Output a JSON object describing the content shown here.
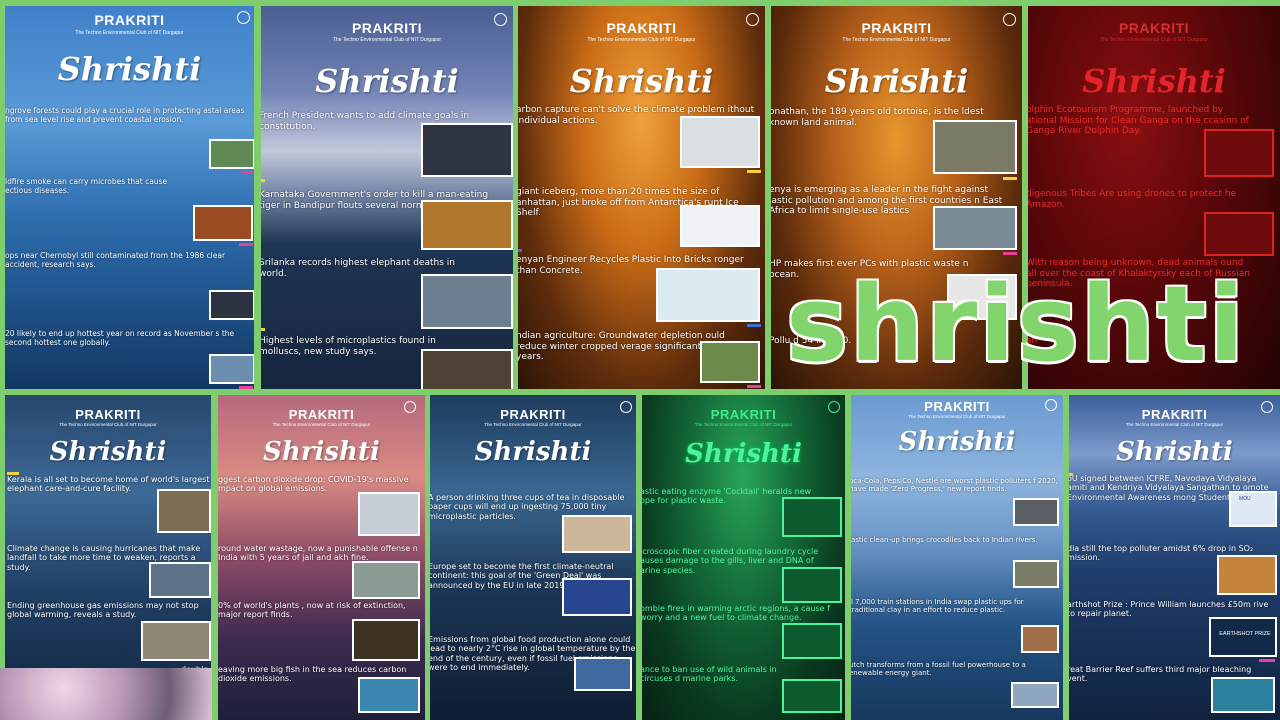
{
  "brand": "PRAKRITI",
  "brand_sub": "The Techno Environmental Club of NIT Durgapur",
  "newsletter_title": "Shrishti",
  "overlay_text": "shrishti",
  "panels": [
    {
      "items": [
        "ngrove forests could play a crucial role in protecting astal areas from sea level rise and prevent coastal erosion.",
        "ldfire smoke can carry microbes that cause ectious  diseases.",
        "ops near Chernobyl still contaminated from the 1986 clear accident, research says.",
        "20 likely to end up hottest year on record as November s the second hottest one globally."
      ]
    },
    {
      "items": [
        "French President wants to add climate goals in constitution.",
        "Karnataka Government's order to kill a man-eating tiger in Bandipur flouts several norms.",
        "Srilanka records highest elephant deaths in world.",
        "Highest levels of microplastics found in molluscs, new study says."
      ]
    },
    {
      "items": [
        "arbon capture can't solve the climate problem ithout individual actions.",
        "giant iceberg, more than 20 times the size of anhattan, just broke off from Antarctica's runt Ice Shelf.",
        "enyan Engineer Recycles Plastic Into Bricks ronger than Concrete.",
        "ndian agriculture: Groundwater depletion ould reduce winter cropped verage significantly in years."
      ]
    },
    {
      "items": [
        "onathan, the 189 years old tortoise, is the ldest known land animal.",
        "enya is emerging as a leader in the fight against lastic pollution and among the first countries n East Africa to limit single-use lastics",
        "HP makes first ever PCs with plastic waste n ocean.",
        "Pollu d 54 in D 20."
      ]
    },
    {
      "items": [
        "olphin Ecotourism Programme, launched by ational Mission for Clean Ganga on the ccasion of Ganga River Dolphin Day.",
        "digenous Tribes Are using drones to protect he Amazon.",
        "With reason being unknown, dead animals ound all over the coast of Khalaktyrsky each of Russian peninsula.",
        "an"
      ]
    },
    {
      "items": [
        "Kerala is all set to become home of world's largest elephant care-and-cure facility.",
        "Climate change is causing hurricanes that make landfall to take more time to weaken, reports a study.",
        "Ending greenhouse gas emissions may not stop global warming, reveals a study.",
        "double"
      ]
    },
    {
      "items": [
        "ggest carbon dioxide drop: COVID-19's massive mpact on global emissions.",
        "round water wastage, now a punishable offense n India with 5 years of jail and akh fine.",
        "0% of world's plants , now at risk of extinction, major report finds.",
        "eaving more big fish in the sea reduces carbon dioxide emissions."
      ]
    },
    {
      "items": [
        "A person drinking three cups of tea in disposable paper cups will end up ingesting 75,000 tiny microplastic particles.",
        "Europe set to become the first climate-neutral continent: this goal of the 'Green Deal' was announced by the EU in late 2019.",
        "Emissions from global food production alone could lead to nearly 2°C rise in global temperature by the end of the century, even if fossil fuel emissions were to end immediately."
      ]
    },
    {
      "items": [
        "astic eating enzyme 'Cocktail' heralds new ope for plastic waste.",
        "icroscopic fiber created during laundry cycle auses damage to the gills, liver and DNA of arine species.",
        "ombie fires in warming arctic regions, a cause f worry and a new fuel to climate change.",
        "ance to ban use of wild animals in circuses d marine parks."
      ]
    },
    {
      "items": [
        "oca-Cola, PepsiCo, Nestlé are worst plastic polluters f 2020, have made 'Zero Progress,' new report finds.",
        "lastic clean-up brings crocodiles back to Indian rivers.",
        "ll 7,000 train stations in India swap plastic ups for traditional clay in an effort to reduce plastic.",
        "utch transforms from a fossil fuel powerhouse to a enewable energy giant."
      ]
    },
    {
      "items": [
        "oU signed between ICFRE, Navodaya Vidyalaya amiti and Kendriya Vidyalaya Sangathan to omote Environmental Awareness mong Students.",
        "dia still the top polluter amidst 6% drop in SO₂ mission.",
        "arthshot Prize : Prince William launches £50m rive to repair planet.",
        "reat Barrier Reef suffers third major bleaching vent."
      ]
    }
  ],
  "thumb_labels": {
    "earthshot": "EARTHSHOT PRIZE",
    "mou": "MOU"
  }
}
